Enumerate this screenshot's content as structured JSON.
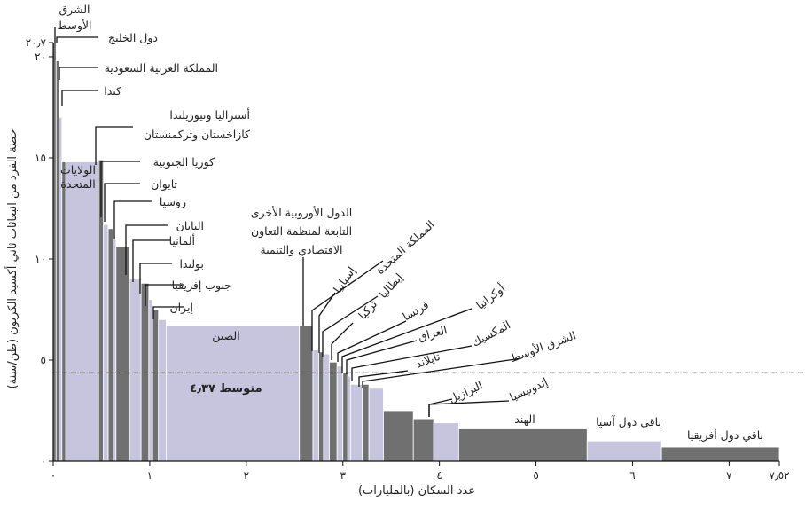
{
  "chart_data": {
    "type": "bar",
    "xlabel": "عدد السكان (بالمليارات)",
    "ylabel": "حصة الفرد من انبعاثات ثاني أكسيد الكربون (طن/سنة)",
    "xlim": [
      0,
      7.52
    ],
    "ylim": [
      0,
      20.7
    ],
    "x_ticks": [
      {
        "v": 0,
        "label": "٠"
      },
      {
        "v": 1,
        "label": "١"
      },
      {
        "v": 2,
        "label": "٢"
      },
      {
        "v": 3,
        "label": "٣"
      },
      {
        "v": 4,
        "label": "٤"
      },
      {
        "v": 5,
        "label": "٥"
      },
      {
        "v": 6,
        "label": "٦"
      },
      {
        "v": 7,
        "label": "٧"
      },
      {
        "v": 7.52,
        "label": "٧٫٥٢"
      }
    ],
    "y_ticks": [
      {
        "v": 0,
        "label": "٠"
      },
      {
        "v": 5,
        "label": "٥"
      },
      {
        "v": 10,
        "label": "١٠"
      },
      {
        "v": 15,
        "label": "١٥"
      },
      {
        "v": 20,
        "label": "٢٠"
      },
      {
        "v": 20.7,
        "label": "٢٠٫٧"
      }
    ],
    "average": {
      "value": 4.37,
      "label": "متوسط ٤٫٣٧"
    },
    "colors": {
      "dark": "#707070",
      "light": "#c7c4dd",
      "border": "#ffffff"
    },
    "bars": [
      {
        "name": "الشرق الأوسط",
        "x0": 0.0,
        "x1": 0.03,
        "y": 20.7,
        "color": "dark"
      },
      {
        "name": "دول الخليج",
        "x0": 0.03,
        "x1": 0.06,
        "y": 19.8,
        "color": "dark"
      },
      {
        "name": "المملكة العربية السعودية",
        "x0": 0.06,
        "x1": 0.09,
        "y": 17.0,
        "color": "light"
      },
      {
        "name": "كندا",
        "x0": 0.09,
        "x1": 0.13,
        "y": 14.8,
        "color": "dark"
      },
      {
        "name": "الولايات المتحدة",
        "x0": 0.13,
        "x1": 0.47,
        "y": 14.8,
        "color": "light"
      },
      {
        "name": "أستراليا ونيوزيلندا",
        "x0": 0.47,
        "x1": 0.52,
        "y": 14.9,
        "color": "dark"
      },
      {
        "name": "كازاخستان وتركمنستان",
        "x0": 0.52,
        "x1": 0.57,
        "y": 11.7,
        "color": "light"
      },
      {
        "name": "كوريا الجنوبية",
        "x0": 0.57,
        "x1": 0.62,
        "y": 11.5,
        "color": "dark"
      },
      {
        "name": "تايوان",
        "x0": 0.62,
        "x1": 0.65,
        "y": 11.0,
        "color": "light"
      },
      {
        "name": "روسيا",
        "x0": 0.65,
        "x1": 0.79,
        "y": 10.6,
        "color": "dark"
      },
      {
        "name": "اليابان",
        "x0": 0.79,
        "x1": 0.91,
        "y": 9.0,
        "color": "light"
      },
      {
        "name": "ألمانيا",
        "x0": 0.91,
        "x1": 0.99,
        "y": 8.8,
        "color": "dark"
      },
      {
        "name": "بولندا",
        "x0": 0.99,
        "x1": 1.03,
        "y": 8.0,
        "color": "light"
      },
      {
        "name": "جنوب إفريقيا",
        "x0": 1.03,
        "x1": 1.09,
        "y": 7.5,
        "color": "dark"
      },
      {
        "name": "إيران",
        "x0": 1.09,
        "x1": 1.17,
        "y": 7.0,
        "color": "light"
      },
      {
        "name": "الصين",
        "x0": 1.17,
        "x1": 2.55,
        "y": 6.7,
        "color": "light"
      },
      {
        "name": "الدول الأوروبية الأخرى التابعة لمنظمة التعاون الاقتصادي والتنمية",
        "x0": 2.55,
        "x1": 2.69,
        "y": 6.7,
        "color": "dark"
      },
      {
        "name": "المملكة المتحدة",
        "x0": 2.69,
        "x1": 2.75,
        "y": 5.5,
        "color": "light"
      },
      {
        "name": "إسبانيا",
        "x0": 2.75,
        "x1": 2.8,
        "y": 5.4,
        "color": "dark"
      },
      {
        "name": "إيطاليا",
        "x0": 2.8,
        "x1": 2.86,
        "y": 5.3,
        "color": "light"
      },
      {
        "name": "تركيا",
        "x0": 2.86,
        "x1": 2.94,
        "y": 4.9,
        "color": "dark"
      },
      {
        "name": "فرنسا",
        "x0": 2.94,
        "x1": 3.0,
        "y": 4.7,
        "color": "light"
      },
      {
        "name": "أوكرانيا",
        "x0": 3.0,
        "x1": 3.05,
        "y": 4.4,
        "color": "dark"
      },
      {
        "name": "العراق",
        "x0": 3.05,
        "x1": 3.08,
        "y": 4.2,
        "color": "light"
      },
      {
        "name": "المكسيك",
        "x0": 3.08,
        "x1": 3.2,
        "y": 3.8,
        "color": "light"
      },
      {
        "name": "تايلاند",
        "x0": 3.2,
        "x1": 3.27,
        "y": 3.8,
        "color": "dark"
      },
      {
        "name": "الشرق الأوسط",
        "x0": 3.27,
        "x1": 3.42,
        "y": 3.6,
        "color": "light"
      },
      {
        "name": "إندونيسيا",
        "x0": 3.42,
        "x1": 3.73,
        "y": 2.5,
        "color": "dark"
      },
      {
        "name": "البرازيل",
        "x0": 3.73,
        "x1": 3.94,
        "y": 2.1,
        "color": "dark"
      },
      {
        "name": "",
        "x0": 3.94,
        "x1": 4.2,
        "y": 1.9,
        "color": "light"
      },
      {
        "name": "الهند",
        "x0": 4.2,
        "x1": 5.53,
        "y": 1.6,
        "color": "dark"
      },
      {
        "name": "باقي دول آسيا",
        "x0": 5.53,
        "x1": 6.3,
        "y": 1.0,
        "color": "light"
      },
      {
        "name": "باقي دول أفريقيا",
        "x0": 6.3,
        "x1": 7.52,
        "y": 0.7,
        "color": "dark"
      }
    ],
    "annotations": [
      {
        "id": "middle-east-top",
        "lines": [
          "الشرق",
          "الأوسط"
        ]
      },
      {
        "id": "gulf",
        "lines": [
          "دول الخليج"
        ]
      },
      {
        "id": "saudi",
        "lines": [
          "المملكة العربية السعودية"
        ]
      },
      {
        "id": "canada",
        "lines": [
          "كندا"
        ]
      },
      {
        "id": "australia",
        "lines": [
          "أستراليا ونيوزيلندا",
          "كازاخستان وتركمنستان"
        ]
      },
      {
        "id": "korea",
        "lines": [
          "كوريا الجنوبية"
        ]
      },
      {
        "id": "taiwan",
        "lines": [
          "تايوان"
        ]
      },
      {
        "id": "russia",
        "lines": [
          "روسيا"
        ]
      },
      {
        "id": "japan",
        "lines": [
          "اليابان"
        ]
      },
      {
        "id": "germany",
        "lines": [
          "ألمانيا"
        ]
      },
      {
        "id": "poland",
        "lines": [
          "بولندا"
        ]
      },
      {
        "id": "southafrica",
        "lines": [
          "جنوب إفريقيا"
        ]
      },
      {
        "id": "iran",
        "lines": [
          "إيران"
        ]
      },
      {
        "id": "usa",
        "lines": [
          "الولايات",
          "المتحدة"
        ]
      },
      {
        "id": "china",
        "lines": [
          "الصين"
        ]
      },
      {
        "id": "oecd",
        "lines": [
          "الدول الأوروبية الأخرى",
          "التابعة لمنظمة التعاون",
          "الاقتصادي والتنمية"
        ]
      },
      {
        "id": "uk",
        "lines": [
          "المملكة المتحدة"
        ]
      },
      {
        "id": "spain",
        "lines": [
          "إسبانيا"
        ]
      },
      {
        "id": "italy",
        "lines": [
          "إيطاليا"
        ]
      },
      {
        "id": "turkey",
        "lines": [
          "تركيا"
        ]
      },
      {
        "id": "france",
        "lines": [
          "فرنسا"
        ]
      },
      {
        "id": "ukraine",
        "lines": [
          "أوكرانيا"
        ]
      },
      {
        "id": "iraq",
        "lines": [
          "العراق"
        ]
      },
      {
        "id": "mexico",
        "lines": [
          "المكسيك"
        ]
      },
      {
        "id": "thailand",
        "lines": [
          "تايلاند"
        ]
      },
      {
        "id": "middle-east-2",
        "lines": [
          "الشرق الأوسط"
        ]
      },
      {
        "id": "brazil",
        "lines": [
          "البرازيل"
        ]
      },
      {
        "id": "indonesia",
        "lines": [
          "إندونيسيا"
        ]
      },
      {
        "id": "india",
        "lines": [
          "الهند"
        ]
      },
      {
        "id": "rest-asia",
        "lines": [
          "باقي دول آسيا"
        ]
      },
      {
        "id": "rest-africa",
        "lines": [
          "باقي دول أفريقيا"
        ]
      }
    ]
  }
}
